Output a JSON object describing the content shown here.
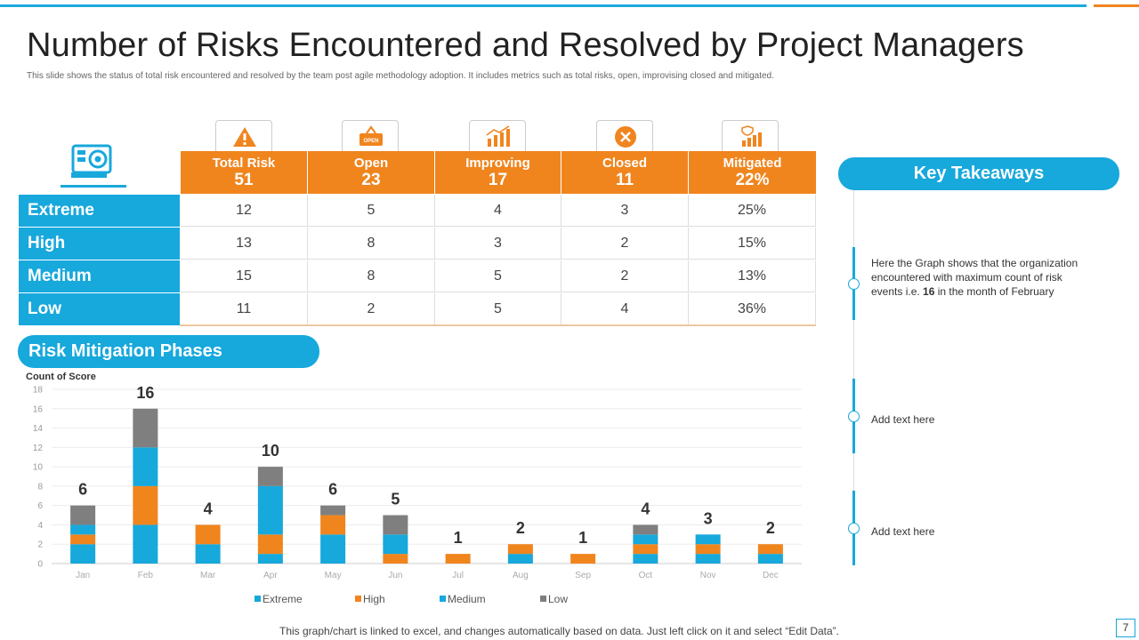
{
  "title": "Number of Risks Encountered and Resolved by Project Managers",
  "subtitle": "This slide shows the status of  total risk encountered and resolved by the team post agile methodology  adoption. It includes metrics such as total risks, open, improvising closed and mitigated.",
  "table": {
    "columns": [
      {
        "label": "Total Risk",
        "value": "51",
        "icon": "warning-icon"
      },
      {
        "label": "Open",
        "value": "23",
        "icon": "open-sign-icon"
      },
      {
        "label": "Improving",
        "value": "17",
        "icon": "growth-chart-icon"
      },
      {
        "label": "Closed",
        "value": "11",
        "icon": "close-circle-icon"
      },
      {
        "label": "Mitigated",
        "value": "22%",
        "icon": "mitigation-chart-icon"
      }
    ],
    "rows": [
      {
        "label": "Extreme",
        "cells": [
          "12",
          "5",
          "4",
          "3",
          "25%"
        ]
      },
      {
        "label": "High",
        "cells": [
          "13",
          "8",
          "3",
          "2",
          "15%"
        ]
      },
      {
        "label": "Medium",
        "cells": [
          "15",
          "8",
          "5",
          "2",
          "13%"
        ]
      },
      {
        "label": "Low",
        "cells": [
          "11",
          "2",
          "5",
          "4",
          "36%"
        ]
      }
    ]
  },
  "phases_label": "Risk Mitigation Phases",
  "takeaways": {
    "title": "Key Takeaways",
    "item1_pre": "Here the Graph shows that the organization encountered with maximum count of risk events  i.e. ",
    "item1_bold": "16",
    "item1_post": " in the month of February",
    "item2": "Add text here",
    "item3": "Add text here"
  },
  "colors": {
    "blue": "#17a8dc",
    "orange": "#f0851e",
    "gray": "#7f7f7f"
  },
  "chart_data": {
    "type": "bar",
    "stacked": true,
    "ylabel": "Count of Score",
    "ylim": [
      0,
      18
    ],
    "yticks": [
      0,
      2,
      4,
      6,
      8,
      10,
      12,
      14,
      16,
      18
    ],
    "categories": [
      "Jan",
      "Feb",
      "Mar",
      "Apr",
      "May",
      "Jun",
      "Jul",
      "Aug",
      "Sep",
      "Oct",
      "Nov",
      "Dec"
    ],
    "series": [
      {
        "name": "Extreme",
        "color": "#17a8dc",
        "values": [
          2,
          4,
          2,
          1,
          3,
          0,
          0,
          1,
          0,
          1,
          1,
          1
        ]
      },
      {
        "name": "High",
        "color": "#f0851e",
        "values": [
          1,
          4,
          2,
          2,
          2,
          1,
          1,
          1,
          1,
          1,
          1,
          1
        ]
      },
      {
        "name": "Medium",
        "color": "#17a8dc",
        "values": [
          1,
          4,
          0,
          5,
          0,
          2,
          0,
          0,
          0,
          1,
          1,
          0
        ]
      },
      {
        "name": "Low",
        "color": "#7f7f7f",
        "values": [
          2,
          4,
          0,
          2,
          1,
          2,
          0,
          0,
          0,
          1,
          0,
          0
        ]
      }
    ],
    "totals": [
      6,
      16,
      4,
      10,
      6,
      5,
      1,
      2,
      1,
      4,
      3,
      2
    ]
  },
  "footer": "This graph/chart is linked to excel,  and changes automatically based on data. Just left click on it and select “Edit  Data”.",
  "page_number": "7"
}
